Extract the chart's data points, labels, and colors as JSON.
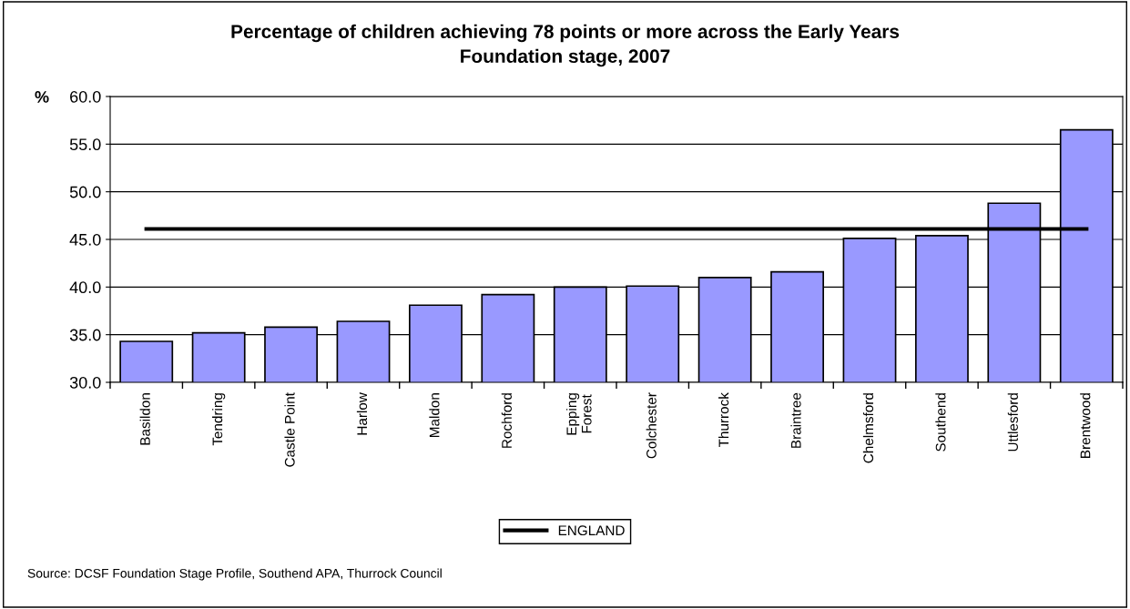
{
  "chart_data": {
    "type": "bar",
    "title": "Percentage of children achieving 78 points or more across the Early Years\nFoundation stage, 2007",
    "ylabel": "%",
    "categories": [
      "Basildon",
      "Tendring",
      "Castle Point",
      "Harlow",
      "Maldon",
      "Rochford",
      "Epping\nForest",
      "Colchester",
      "Thurrock",
      "Braintree",
      "Chelmsford",
      "Southend",
      "Uttlesford",
      "Brentwood"
    ],
    "series": [
      {
        "color": "#9999ff",
        "values": [
          34.3,
          35.2,
          35.8,
          36.4,
          38.1,
          39.2,
          40.0,
          40.1,
          41.0,
          41.6,
          45.1,
          45.4,
          48.8,
          56.5
        ]
      },
      {
        "type": "line",
        "name": "ENGLAND",
        "color": "#000000",
        "values": [
          46.1,
          46.1,
          46.1,
          46.1,
          46.1,
          46.1,
          46.1,
          46.1,
          46.1,
          46.1,
          46.1,
          46.1,
          46.1,
          46.1
        ]
      }
    ],
    "ylim": [
      30,
      60
    ],
    "yticks": [
      {
        "value": 30,
        "label": "30.0"
      },
      {
        "value": 35,
        "label": "35.0"
      },
      {
        "value": 40,
        "label": "40.0"
      },
      {
        "value": 45,
        "label": "45.0"
      },
      {
        "value": 50,
        "label": "50.0"
      },
      {
        "value": 55,
        "label": "55.0"
      },
      {
        "value": 60,
        "label": "60.0"
      }
    ],
    "grid": "y",
    "legend": "bottom",
    "marker": "none",
    "line_style": "solid",
    "annotations": [
      "Source: DCSF Foundation Stage Profile, Southend APA, Thurrock Council"
    ]
  }
}
